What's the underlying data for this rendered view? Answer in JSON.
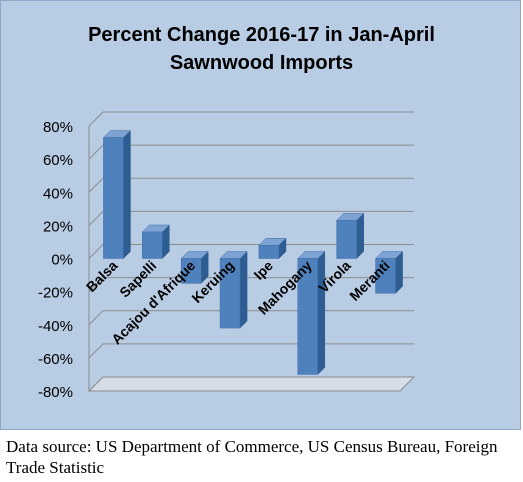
{
  "chart_data": {
    "type": "bar",
    "title": "Percent Change 2016-17 in Jan-April\nSawnwood Imports",
    "xlabel": "",
    "ylabel": "",
    "categories": [
      "Balsa",
      "Sapelli",
      "Acajou d'Afrique",
      "Keruing",
      "Ipe",
      "Mahogany",
      "Virola",
      "Meranti"
    ],
    "values": [
      73,
      16,
      -15,
      -42,
      8,
      -70,
      23,
      -21
    ],
    "ylim": [
      -80,
      80
    ],
    "yticks": [
      "-80%",
      "-60%",
      "-40%",
      "-20%",
      "0%",
      "20%",
      "40%",
      "60%",
      "80%"
    ],
    "grid": true,
    "legend": "none",
    "bar_color": "#4f81bd"
  },
  "caption": "Data source: US Department of Commerce, US Census Bureau, Foreign Trade Statistic"
}
